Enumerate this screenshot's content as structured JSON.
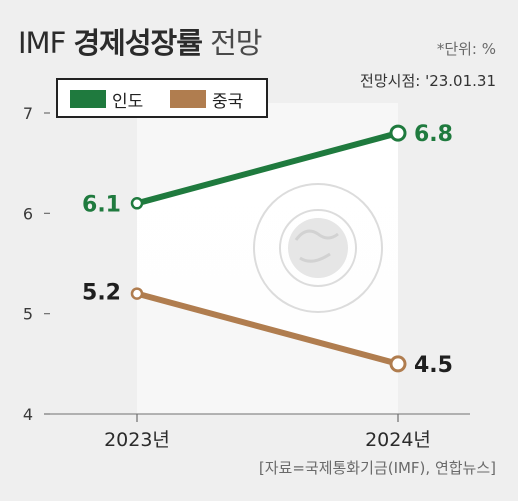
{
  "header": {
    "title_prefix": "IMF",
    "title_bold": "경제성장률",
    "title_suffix": "전망",
    "unit_note": "*단위: %",
    "as_of": "전망시점: '23.01.31"
  },
  "source": "[자료=국제통화기금(IMF), 연합뉴스]",
  "colors": {
    "india": "#1f7a3e",
    "china": "#b07d4f",
    "axis": "#6d6d6d",
    "background": "#efefef"
  },
  "watermark": "imf-seal",
  "chart_data": {
    "type": "line",
    "x": [
      "2023년",
      "2024년"
    ],
    "series": [
      {
        "name": "인도",
        "values": [
          6.1,
          6.8
        ],
        "labels": [
          "6.1",
          "6.8"
        ],
        "color": "#1f7a3e"
      },
      {
        "name": "중국",
        "values": [
          5.2,
          4.5
        ],
        "labels": [
          "5.2",
          "4.5"
        ],
        "color": "#b07d4f"
      }
    ],
    "yticks": [
      "4",
      "5",
      "6",
      "7"
    ],
    "ylim": [
      4,
      7
    ],
    "legend": "top-left",
    "grid": false
  }
}
